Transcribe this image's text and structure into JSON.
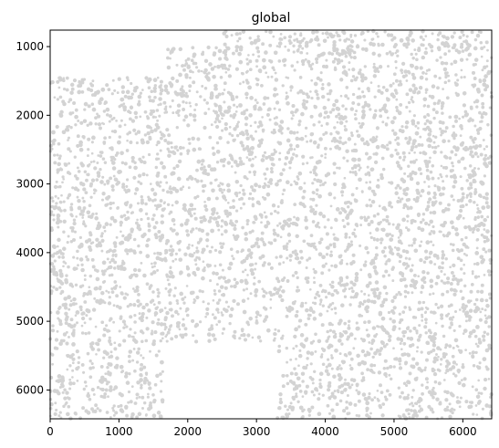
{
  "chart_data": {
    "type": "scatter",
    "title": "global",
    "xlabel": "",
    "ylabel": "",
    "xlim": [
      0,
      6420
    ],
    "ylim": [
      6420,
      760
    ],
    "y_inverted": true,
    "x_ticks": [
      "0",
      "1000",
      "2000",
      "3000",
      "4000",
      "5000",
      "6000"
    ],
    "y_ticks": [
      "1000",
      "2000",
      "3000",
      "4000",
      "5000",
      "6000"
    ],
    "point_color": "#d3d3d3",
    "grid": false,
    "legend": "none",
    "series": [
      {
        "description": "dense cloud of cell centroids spanning most of the field",
        "x_range": [
          0,
          6420
        ],
        "y_range": [
          760,
          6420
        ],
        "approx_count": 4500,
        "empty_regions": [
          {
            "x": [
              0,
              1700
            ],
            "y": [
              760,
              1450
            ]
          },
          {
            "x": [
              1700,
              2500
            ],
            "y": [
              760,
              1000
            ]
          },
          {
            "x": [
              1650,
              3300
            ],
            "y": [
              5300,
              6420
            ]
          }
        ]
      }
    ]
  }
}
